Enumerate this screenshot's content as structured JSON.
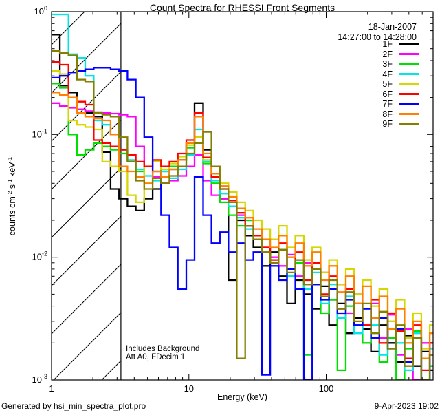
{
  "title": "Count Spectra for RHESSI Front Segments",
  "header": {
    "date": "18-Jan-2007",
    "time_range": "14:27:00 to 14:28:00"
  },
  "annotations": {
    "line1": "Includes Background",
    "line2": "Att A0, FDecim 1"
  },
  "footer": {
    "left": "Generated by hsi_min_spectra_plot.pro",
    "right": "9-Apr-2023 19:02"
  },
  "legend": {
    "position": "top-right-inside",
    "entries": [
      {
        "label": "1F",
        "color": "#000000"
      },
      {
        "label": "2F",
        "color": "#ff00ff"
      },
      {
        "label": "3F",
        "color": "#00e000"
      },
      {
        "label": "4F",
        "color": "#00e5e5"
      },
      {
        "label": "5F",
        "color": "#d6d600"
      },
      {
        "label": "6F",
        "color": "#ff0000"
      },
      {
        "label": "7F",
        "color": "#0000ff"
      },
      {
        "label": "8F",
        "color": "#ff8000"
      },
      {
        "label": "9F",
        "color": "#857f00"
      }
    ]
  },
  "chart_data": {
    "type": "line",
    "mode": "step-histogram",
    "title": "Count Spectra for RHESSI Front Segments",
    "xlabel": "Energy (keV)",
    "ylabel_parts": [
      {
        "t": "counts cm"
      },
      {
        "s": "-2"
      },
      {
        "t": " s"
      },
      {
        "s": "-1"
      },
      {
        "t": " keV"
      },
      {
        "s": "-1"
      }
    ],
    "x_scale": "log",
    "y_scale": "log",
    "xlim": [
      1,
      600
    ],
    "ylim": [
      0.001,
      1
    ],
    "x_major_ticks": [
      1,
      10,
      100
    ],
    "y_major_exponents": [
      0,
      -1,
      -2,
      -3
    ],
    "grid": false,
    "hatch_region": {
      "from_keV": 1,
      "to_keV": 3.2,
      "style": "diagonal-hatch"
    },
    "energies_keV": [
      1.0,
      1.15,
      1.33,
      1.53,
      1.76,
      2.03,
      2.34,
      2.69,
      3.1,
      3.57,
      4.11,
      4.73,
      5.45,
      6.27,
      7.22,
      8.31,
      9.57,
      11.0,
      12.7,
      14.6,
      16.8,
      19.4,
      22.3,
      25.7,
      29.5,
      34.0,
      39.1,
      45.0,
      51.8,
      59.6,
      68.7,
      79.1,
      91.0,
      104.8,
      120.6,
      138.8,
      159.8,
      183.9,
      211.7,
      243.7,
      280.5,
      322.9,
      371.6,
      427.8,
      492.4,
      566.8
    ],
    "series": [
      {
        "name": "1F",
        "color": "#000000",
        "values": [
          0.65,
          0.25,
          0.22,
          0.16,
          0.15,
          0.14,
          0.072,
          0.036,
          0.03,
          0.026,
          0.024,
          0.03,
          0.036,
          0.045,
          0.052,
          0.062,
          0.085,
          0.18,
          0.075,
          0.048,
          0.03,
          0.0065,
          0.02,
          0.015,
          0.012,
          0.0085,
          0.011,
          0.007,
          0.0042,
          0.0065,
          0.005,
          0.0038,
          0.0058,
          0.0028,
          0.0042,
          0.0024,
          0.0032,
          0.0026,
          0.0017,
          0.0028,
          0.002,
          0.0014,
          0.0023,
          0.0013,
          0.0017,
          0.0012
        ]
      },
      {
        "name": "2F",
        "color": "#ff00ff",
        "values": [
          0.18,
          0.17,
          0.165,
          0.16,
          0.155,
          0.152,
          0.15,
          0.148,
          0.145,
          0.14,
          0.08,
          0.055,
          0.045,
          0.04,
          0.042,
          0.046,
          0.055,
          0.068,
          0.042,
          0.032,
          0.03,
          0.026,
          0.022,
          0.018,
          0.015,
          0.012,
          0.01,
          0.0085,
          0.0105,
          0.007,
          0.009,
          0.006,
          0.0075,
          0.0045,
          0.006,
          0.0035,
          0.005,
          0.0028,
          0.0042,
          0.0022,
          0.0034,
          0.0016,
          0.0026,
          0.0009,
          0.002,
          0.0013
        ]
      },
      {
        "name": "3F",
        "color": "#00e000",
        "values": [
          0.26,
          0.24,
          0.1,
          0.068,
          0.075,
          0.085,
          0.08,
          0.075,
          0.07,
          0.06,
          0.05,
          0.055,
          0.06,
          0.05,
          0.055,
          0.062,
          0.078,
          0.095,
          0.058,
          0.04,
          0.028,
          0.022,
          0.018,
          0.02,
          0.014,
          0.011,
          0.009,
          0.0115,
          0.007,
          0.009,
          0.0016,
          0.006,
          0.0035,
          0.0045,
          0.0012,
          0.004,
          0.0028,
          0.002,
          0.0032,
          0.0014,
          0.0022,
          0.001,
          0.0018,
          0.0025,
          0.0008,
          0.0013
        ]
      },
      {
        "name": "4F",
        "color": "#00e5e5",
        "values": [
          0.95,
          0.95,
          0.45,
          0.42,
          0.3,
          0.13,
          0.12,
          0.1,
          0.075,
          0.062,
          0.052,
          0.046,
          0.042,
          0.05,
          0.044,
          0.052,
          0.068,
          0.11,
          0.06,
          0.042,
          0.033,
          0.026,
          0.021,
          0.017,
          0.014,
          0.011,
          0.009,
          0.0115,
          0.007,
          0.0095,
          0.0055,
          0.0075,
          0.0042,
          0.006,
          0.0032,
          0.0048,
          0.0024,
          0.0038,
          0.0028,
          0.0016,
          0.003,
          0.002,
          0.0012,
          0.0024,
          0.001,
          0.0018
        ]
      },
      {
        "name": "5F",
        "color": "#d6d600",
        "values": [
          0.33,
          0.31,
          0.13,
          0.12,
          0.115,
          0.11,
          0.06,
          0.055,
          0.05,
          0.032,
          0.028,
          0.055,
          0.06,
          0.052,
          0.058,
          0.066,
          0.082,
          0.095,
          0.062,
          0.048,
          0.04,
          0.034,
          0.028,
          0.024,
          0.02,
          0.017,
          0.014,
          0.018,
          0.012,
          0.015,
          0.0095,
          0.012,
          0.0075,
          0.0095,
          0.006,
          0.008,
          0.005,
          0.0065,
          0.004,
          0.0055,
          0.003,
          0.0045,
          0.0022,
          0.0035,
          0.0018,
          0.0028
        ]
      },
      {
        "name": "6F",
        "color": "#ff0000",
        "values": [
          0.39,
          0.37,
          0.2,
          0.185,
          0.175,
          0.09,
          0.085,
          0.08,
          0.075,
          0.068,
          0.06,
          0.055,
          0.062,
          0.055,
          0.06,
          0.07,
          0.09,
          0.15,
          0.065,
          0.045,
          0.036,
          0.029,
          0.023,
          0.018,
          0.015,
          0.012,
          0.0095,
          0.013,
          0.008,
          0.011,
          0.0065,
          0.009,
          0.005,
          0.007,
          0.0038,
          0.0055,
          0.0042,
          0.0028,
          0.0045,
          0.002,
          0.0035,
          0.0025,
          0.0015,
          0.0028,
          0.0012,
          0.002
        ]
      },
      {
        "name": "7F",
        "color": "#0000ff",
        "values": [
          0.29,
          0.3,
          0.32,
          0.33,
          0.34,
          0.35,
          0.35,
          0.34,
          0.33,
          0.28,
          0.2,
          0.095,
          0.05,
          0.022,
          0.012,
          0.0055,
          0.0095,
          0.045,
          0.022,
          0.013,
          0.016,
          0.011,
          0.013,
          0.0095,
          0.011,
          0.0011,
          0.0085,
          0.0065,
          0.008,
          0.0055,
          0.001,
          0.006,
          0.0045,
          0.0055,
          0.0035,
          0.0045,
          0.0028,
          0.0038,
          0.0022,
          0.0032,
          0.0018,
          0.0026,
          0.0014,
          0.0022,
          0.001,
          0.0016
        ]
      },
      {
        "name": "8F",
        "color": "#ff8000",
        "values": [
          0.22,
          0.21,
          0.2,
          0.15,
          0.14,
          0.135,
          0.13,
          0.1,
          0.055,
          0.05,
          0.045,
          0.04,
          0.05,
          0.045,
          0.052,
          0.062,
          0.085,
          0.14,
          0.07,
          0.048,
          0.038,
          0.031,
          0.025,
          0.021,
          0.017,
          0.014,
          0.012,
          0.015,
          0.01,
          0.013,
          0.0085,
          0.011,
          0.0065,
          0.0085,
          0.0052,
          0.007,
          0.0042,
          0.0058,
          0.0032,
          0.0048,
          0.0026,
          0.0038,
          0.002,
          0.003,
          0.0015,
          0.0024
        ]
      },
      {
        "name": "9F",
        "color": "#857f00",
        "values": [
          0.48,
          0.46,
          0.44,
          0.28,
          0.27,
          0.15,
          0.145,
          0.14,
          0.095,
          0.06,
          0.042,
          0.036,
          0.044,
          0.04,
          0.046,
          0.055,
          0.07,
          0.085,
          0.105,
          0.055,
          0.036,
          0.028,
          0.0015,
          0.018,
          0.014,
          0.011,
          0.009,
          0.0115,
          0.0075,
          0.0095,
          0.006,
          0.008,
          0.0048,
          0.0065,
          0.0038,
          0.0052,
          0.003,
          0.0042,
          0.0024,
          0.0036,
          0.0018,
          0.0028,
          0.0013,
          0.0022,
          0.001,
          0.0016
        ]
      }
    ]
  }
}
